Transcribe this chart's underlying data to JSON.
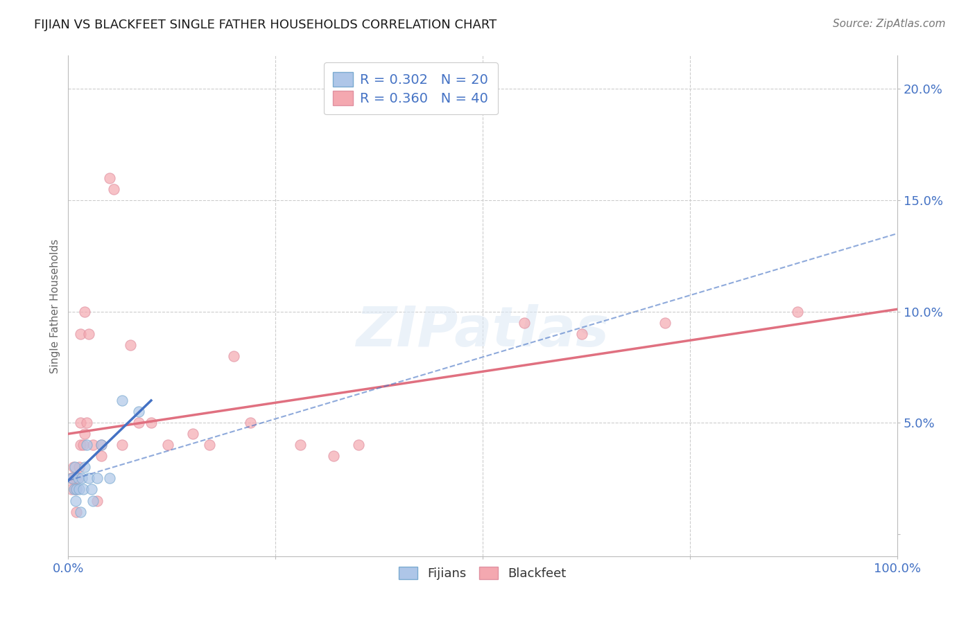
{
  "title": "FIJIAN VS BLACKFEET SINGLE FATHER HOUSEHOLDS CORRELATION CHART",
  "source": "Source: ZipAtlas.com",
  "ylabel": "Single Father Households",
  "xlim": [
    0.0,
    1.0
  ],
  "ylim": [
    -0.01,
    0.215
  ],
  "background_color": "#ffffff",
  "grid_color": "#cccccc",
  "title_fontsize": 13,
  "axis_label_color": "#4472c4",
  "fijians_color": "#aec6e8",
  "blackfeet_color": "#f4a8b0",
  "fijians_edge_color": "#7aaad0",
  "blackfeet_edge_color": "#e090a0",
  "fijians_line_color": "#4472c4",
  "blackfeet_line_color": "#e07080",
  "fijians_solid_trend_x": [
    0.0,
    0.1
  ],
  "fijians_solid_trend_y": [
    0.024,
    0.06
  ],
  "fijians_dashed_trend_x": [
    0.0,
    1.0
  ],
  "fijians_dashed_trend_y": [
    0.024,
    0.135
  ],
  "blackfeet_trend_x": [
    0.0,
    1.0
  ],
  "blackfeet_trend_y": [
    0.045,
    0.101
  ],
  "fijians_x": [
    0.005,
    0.007,
    0.008,
    0.009,
    0.01,
    0.012,
    0.013,
    0.015,
    0.016,
    0.018,
    0.02,
    0.022,
    0.025,
    0.028,
    0.03,
    0.035,
    0.04,
    0.05,
    0.065,
    0.085
  ],
  "fijians_y": [
    0.025,
    0.02,
    0.03,
    0.015,
    0.02,
    0.025,
    0.02,
    0.01,
    0.025,
    0.02,
    0.03,
    0.04,
    0.025,
    0.02,
    0.015,
    0.025,
    0.04,
    0.025,
    0.06,
    0.055
  ],
  "blackfeet_x": [
    0.003,
    0.004,
    0.005,
    0.006,
    0.008,
    0.009,
    0.01,
    0.01,
    0.012,
    0.013,
    0.015,
    0.015,
    0.015,
    0.018,
    0.02,
    0.02,
    0.022,
    0.025,
    0.03,
    0.035,
    0.04,
    0.04,
    0.05,
    0.055,
    0.065,
    0.075,
    0.085,
    0.1,
    0.12,
    0.15,
    0.17,
    0.2,
    0.22,
    0.28,
    0.32,
    0.35,
    0.55,
    0.62,
    0.72,
    0.88
  ],
  "blackfeet_y": [
    0.025,
    0.02,
    0.025,
    0.03,
    0.02,
    0.025,
    0.01,
    0.02,
    0.025,
    0.03,
    0.04,
    0.05,
    0.09,
    0.04,
    0.045,
    0.1,
    0.05,
    0.09,
    0.04,
    0.015,
    0.035,
    0.04,
    0.16,
    0.155,
    0.04,
    0.085,
    0.05,
    0.05,
    0.04,
    0.045,
    0.04,
    0.08,
    0.05,
    0.04,
    0.035,
    0.04,
    0.095,
    0.09,
    0.095,
    0.1
  ],
  "legend1_label1": "R = 0.302   N = 20",
  "legend1_label2": "R = 0.360   N = 40",
  "legend2_labels": [
    "Fijians",
    "Blackfeet"
  ],
  "watermark": "ZIPatlas",
  "marker_size": 120,
  "marker_alpha": 0.7
}
